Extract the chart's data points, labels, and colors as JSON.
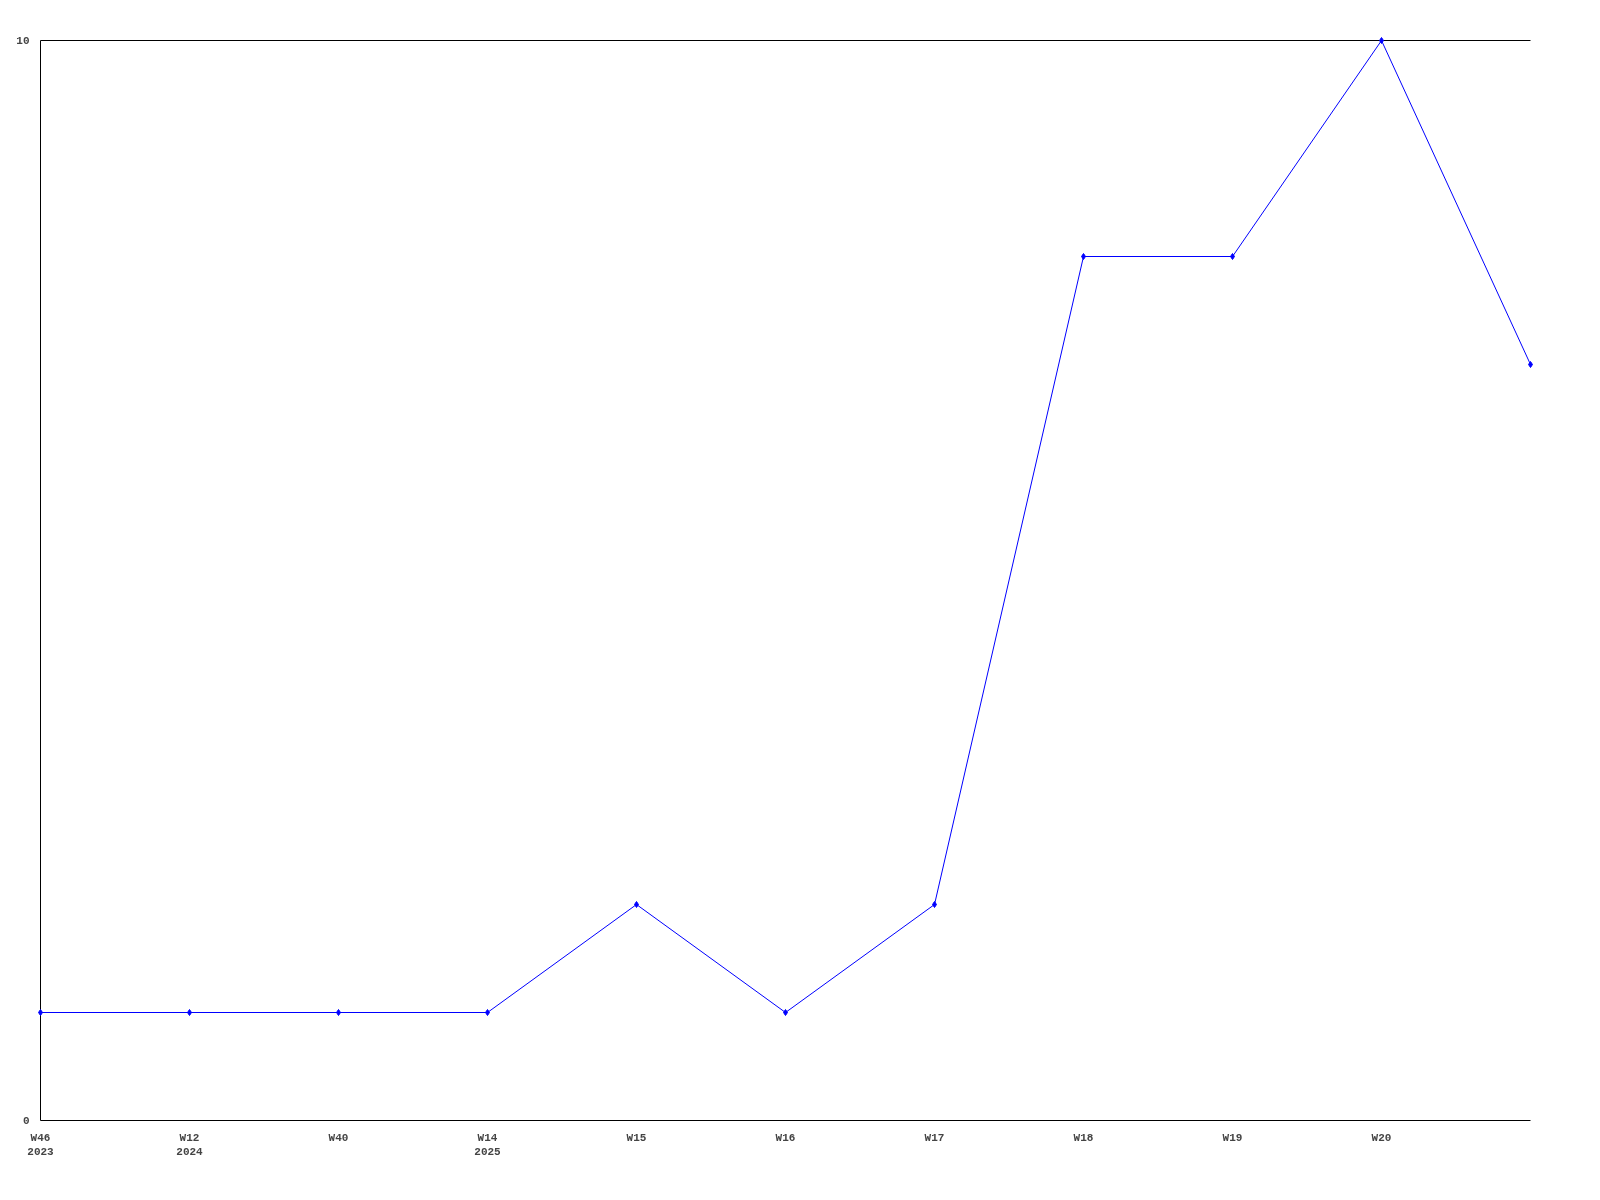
{
  "chart_data": {
    "type": "line",
    "categories": [
      "W46\n2023",
      "W12\n2024",
      "W40",
      "W14\n2025",
      "W15",
      "W16",
      "W17",
      "W18",
      "W19",
      "W20",
      null
    ],
    "series": [
      {
        "color": "#0000ff",
        "values": [
          1,
          1,
          1,
          1,
          2,
          1,
          2,
          8,
          8,
          10,
          7
        ]
      }
    ],
    "ylim": [
      0,
      10
    ],
    "yticks": [
      0,
      10
    ],
    "grid": false,
    "marker": "diamond",
    "line_style": "solid"
  }
}
